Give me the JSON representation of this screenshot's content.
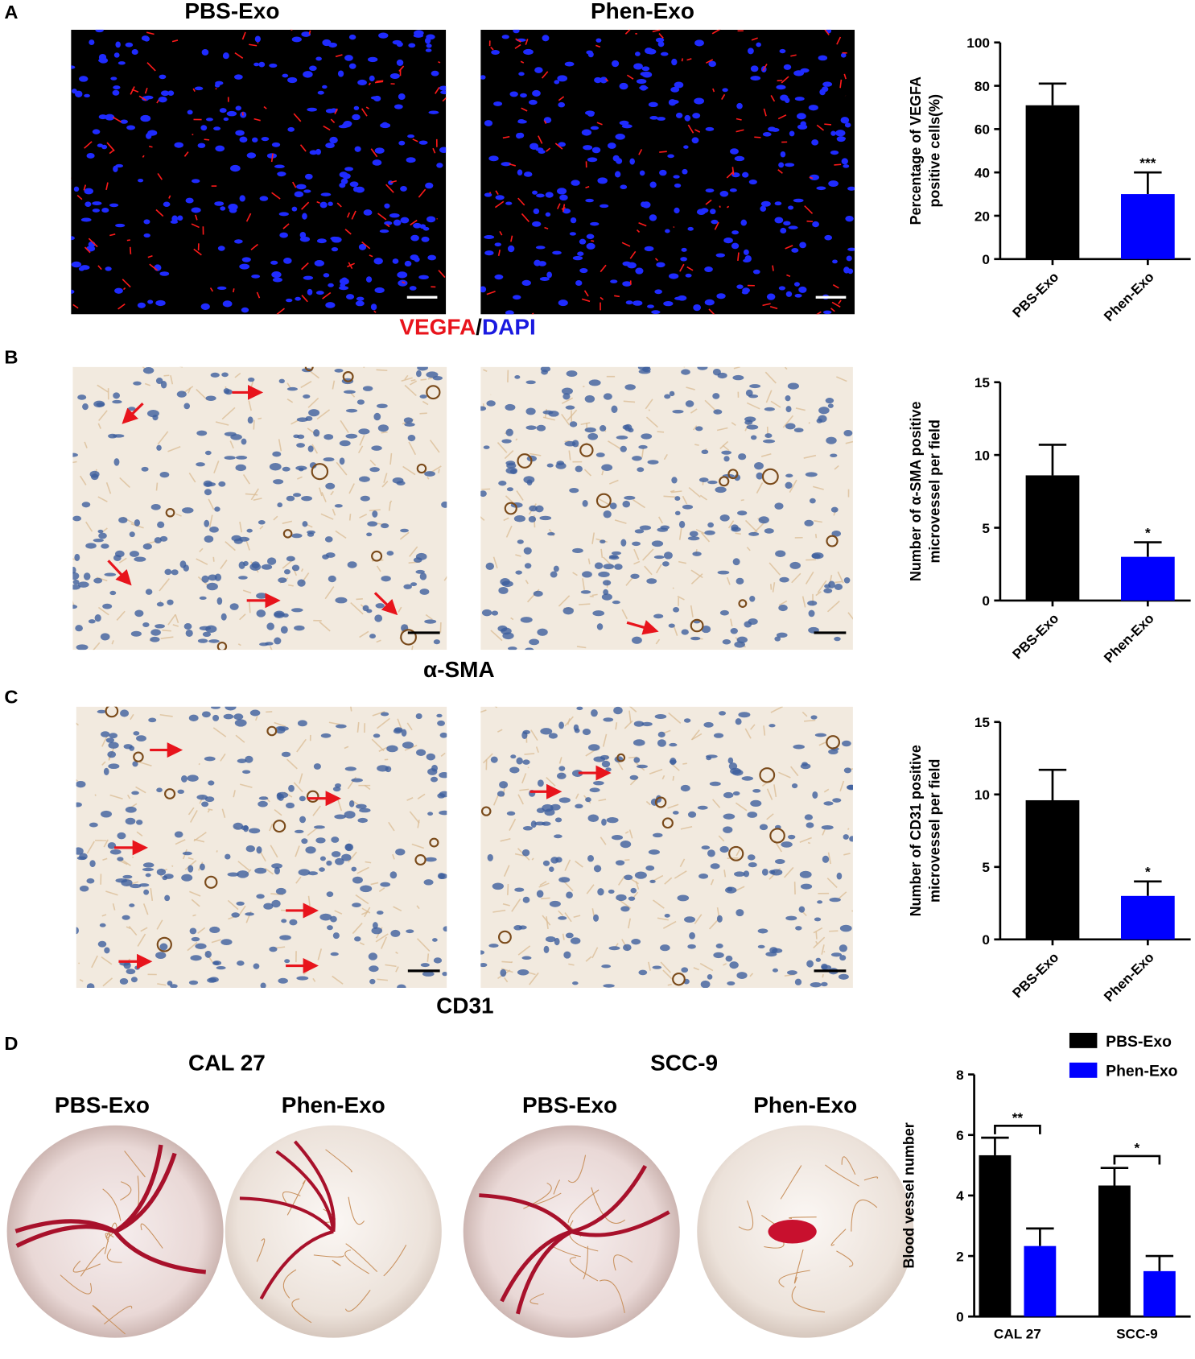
{
  "figure": {
    "A": {
      "letter": "A",
      "column_titles": [
        "PBS-Exo",
        "Phen-Exo"
      ],
      "stain_label": {
        "red": "VEGFA",
        "sep": "/",
        "blue": "DAPI"
      }
    },
    "B": {
      "letter": "B",
      "stain_label": "α-SMA"
    },
    "C": {
      "letter": "C",
      "stain_label": "CD31"
    },
    "D": {
      "letter": "D",
      "cell_lines": [
        "CAL 27",
        "SCC-9"
      ],
      "group_labels": [
        "PBS-Exo",
        "Phen-Exo",
        "PBS-Exo",
        "Phen-Exo"
      ]
    }
  },
  "chart_data": [
    {
      "type": "bar",
      "ylabel": [
        "Percentage of VEGFA",
        "positive cells(%)"
      ],
      "categories": [
        "PBS-Exo",
        "Phen-Exo"
      ],
      "values": [
        71,
        30
      ],
      "errors": [
        10,
        10
      ],
      "colors": [
        "#000000",
        "#0000ff"
      ],
      "significance": [
        null,
        "***"
      ],
      "ylim": [
        0,
        100
      ],
      "yticks": [
        0,
        20,
        40,
        60,
        80,
        100
      ]
    },
    {
      "type": "bar",
      "ylabel": [
        "Number of α-SMA positive",
        "microvessel per field"
      ],
      "categories": [
        "PBS-Exo",
        "Phen-Exo"
      ],
      "values": [
        8.6,
        3.0
      ],
      "errors": [
        2.1,
        1.0
      ],
      "colors": [
        "#000000",
        "#0000ff"
      ],
      "significance": [
        null,
        "*"
      ],
      "ylim": [
        0,
        15
      ],
      "yticks": [
        0,
        5,
        10,
        15
      ]
    },
    {
      "type": "bar",
      "ylabel": [
        "Number of CD31 positive",
        "microvessel per field"
      ],
      "categories": [
        "PBS-Exo",
        "Phen-Exo"
      ],
      "values": [
        9.6,
        3.0
      ],
      "errors": [
        2.1,
        1.0
      ],
      "colors": [
        "#000000",
        "#0000ff"
      ],
      "significance": [
        null,
        "*"
      ],
      "ylim": [
        0,
        15
      ],
      "yticks": [
        0,
        5,
        10,
        15
      ]
    },
    {
      "type": "grouped_bar",
      "ylabel": [
        "Blood vessel number"
      ],
      "categories": [
        "CAL 27",
        "SCC-9"
      ],
      "series": [
        {
          "name": "PBS-Exo",
          "color": "#000000",
          "values": [
            5.33,
            4.33
          ],
          "errors": [
            0.58,
            0.58
          ]
        },
        {
          "name": "Phen-Exo",
          "color": "#0000ff",
          "values": [
            2.33,
            1.5
          ],
          "errors": [
            0.58,
            0.5
          ]
        }
      ],
      "significance": [
        "**",
        "*"
      ],
      "legend": "upper right",
      "ylim": [
        0,
        8
      ],
      "yticks": [
        0,
        2,
        4,
        6,
        8
      ]
    }
  ]
}
